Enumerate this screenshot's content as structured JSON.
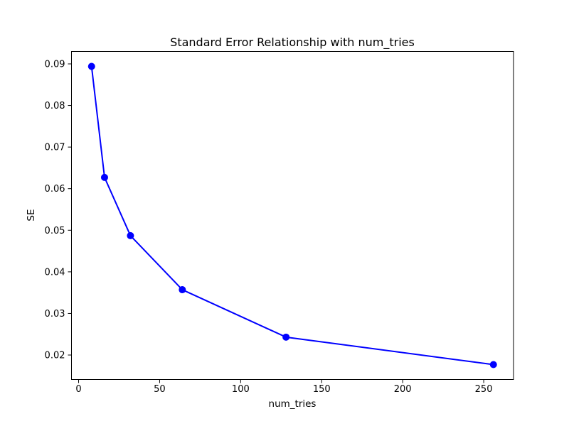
{
  "chart_data": {
    "type": "line",
    "title": "Standard Error Relationship with num_tries",
    "xlabel": "num_tries",
    "ylabel": "SE",
    "x": [
      8,
      16,
      32,
      64,
      128,
      256
    ],
    "y": [
      0.0894,
      0.0627,
      0.0487,
      0.0357,
      0.0243,
      0.0177
    ],
    "line_color": "#0000ff",
    "marker": "circle",
    "marker_radius": 5,
    "line_width": 2,
    "xlim": [
      -4.4,
      268.4
    ],
    "ylim": [
      0.014115,
      0.092985
    ],
    "xticks": [
      0,
      50,
      100,
      150,
      200,
      250
    ],
    "xtick_labels": [
      "0",
      "50",
      "100",
      "150",
      "200",
      "250"
    ],
    "yticks": [
      0.02,
      0.03,
      0.04,
      0.05,
      0.06,
      0.07,
      0.08,
      0.09
    ],
    "ytick_labels": [
      "0.02",
      "0.03",
      "0.04",
      "0.05",
      "0.06",
      "0.07",
      "0.08",
      "0.09"
    ],
    "grid": false,
    "legend": null,
    "spine_color": "#000000",
    "background_color": "#ffffff"
  }
}
